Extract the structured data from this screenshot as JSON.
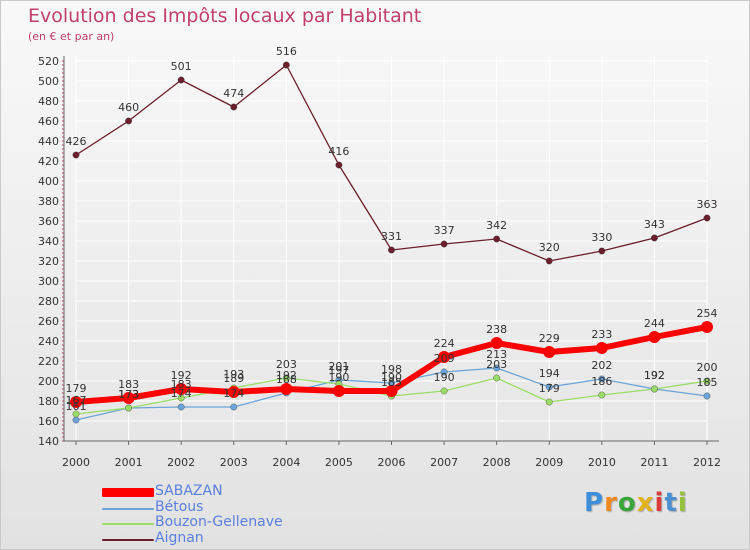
{
  "chart_data": {
    "type": "line",
    "title": "Evolution des Impôts locaux par Habitant",
    "subtitle": "(en € et par an)",
    "x": [
      "2000",
      "2001",
      "2002",
      "2003",
      "2004",
      "2005",
      "2006",
      "2007",
      "2008",
      "2009",
      "2010",
      "2011",
      "2012"
    ],
    "ylim": [
      140,
      520
    ],
    "yticks": [
      140,
      160,
      180,
      200,
      220,
      240,
      260,
      280,
      300,
      320,
      340,
      360,
      380,
      400,
      420,
      440,
      460,
      480,
      500,
      520
    ],
    "series": [
      {
        "name": "Aignan",
        "color": "#6b1f2c",
        "values": [
          426,
          460,
          501,
          474,
          516,
          416,
          331,
          337,
          342,
          320,
          330,
          343,
          363
        ],
        "labels": [
          "426",
          "460",
          "501",
          "474",
          "516",
          "416",
          "331",
          "337",
          "342",
          "320",
          "330",
          "343",
          "363"
        ]
      },
      {
        "name": "Bétous",
        "color": "#6aa4d8",
        "values": [
          161,
          173,
          174,
          174,
          188,
          201,
          198,
          209,
          213,
          194,
          202,
          192,
          185
        ],
        "labels": [
          "161",
          "173",
          "174",
          "174",
          "188",
          "201",
          "198",
          "209",
          "213",
          "194",
          "202",
          "192",
          "185"
        ]
      },
      {
        "name": "Bouzon-Gellenave",
        "color": "#99dd66",
        "values": [
          167,
          173,
          183,
          193,
          203,
          197,
          185,
          190,
          203,
          179,
          186,
          192,
          200
        ],
        "labels": [
          "167",
          "173",
          "183",
          "193",
          "203",
          "197",
          "185",
          "190",
          "203",
          "179",
          "186",
          "192",
          "200"
        ]
      },
      {
        "name": "SABAZAN",
        "color": "#ff0000",
        "values": [
          179,
          183,
          192,
          189,
          192,
          190,
          190,
          224,
          238,
          229,
          233,
          244,
          254
        ],
        "labels": [
          "179",
          "183",
          "192",
          "189",
          "192",
          "190",
          "190",
          "224",
          "238",
          "229",
          "233",
          "244",
          "254"
        ]
      }
    ]
  },
  "legend": {
    "items": [
      {
        "name": "SABAZAN",
        "color": "#ff0000"
      },
      {
        "name": "Bétous",
        "color": "#6aa4d8"
      },
      {
        "name": "Bouzon-Gellenave",
        "color": "#99dd66"
      },
      {
        "name": "Aignan",
        "color": "#6b1f2c"
      }
    ]
  },
  "logo": {
    "letters": [
      "P",
      "r",
      "o",
      "x",
      "i",
      "t",
      "i"
    ],
    "colors": [
      "#3c8fd8",
      "#f08a1c",
      "#3aa63a",
      "#e3b21a",
      "#d93a3a",
      "#4a8fd1",
      "#94c23a"
    ]
  }
}
